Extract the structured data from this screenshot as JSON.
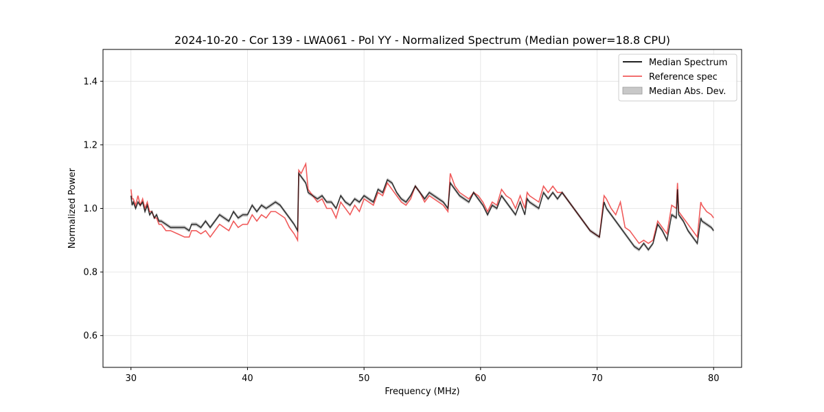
{
  "chart_data": {
    "type": "line",
    "title": "2024-10-20 - Cor 139 - LWA061 - Pol YY - Normalized Spectrum (Median power=18.8 CPU)",
    "xlabel": "Frequency (MHz)",
    "ylabel": "Normalized Power",
    "xlim": [
      27.6,
      82.4
    ],
    "ylim": [
      0.5,
      1.5
    ],
    "xticks": [
      30,
      40,
      50,
      60,
      70,
      80
    ],
    "yticks": [
      0.6,
      0.8,
      1.0,
      1.2,
      1.4
    ],
    "grid": true,
    "legend_position": "top-right",
    "series": [
      {
        "name": "Median Spectrum",
        "color": "#000000",
        "x": [
          30.0,
          30.1,
          30.2,
          30.4,
          30.6,
          30.8,
          31.0,
          31.2,
          31.4,
          31.6,
          31.8,
          32.0,
          32.2,
          32.4,
          32.6,
          33.0,
          33.4,
          34.0,
          34.6,
          35.0,
          35.2,
          35.6,
          36.0,
          36.4,
          36.8,
          37.2,
          37.6,
          38.0,
          38.4,
          38.8,
          39.2,
          39.6,
          40.0,
          40.4,
          40.8,
          41.2,
          41.6,
          42.0,
          42.4,
          42.8,
          43.2,
          43.6,
          44.0,
          44.3,
          44.4,
          44.6,
          45.0,
          45.2,
          45.6,
          46.0,
          46.4,
          46.8,
          47.2,
          47.6,
          48.0,
          48.4,
          48.8,
          49.2,
          49.6,
          50.0,
          50.4,
          50.8,
          51.2,
          51.6,
          52.0,
          52.4,
          52.8,
          53.2,
          53.6,
          54.0,
          54.4,
          54.8,
          55.2,
          55.6,
          56.0,
          56.4,
          56.8,
          57.2,
          57.4,
          57.8,
          58.2,
          58.6,
          59.0,
          59.4,
          59.8,
          60.2,
          60.6,
          61.0,
          61.4,
          61.8,
          62.2,
          62.6,
          63.0,
          63.4,
          63.8,
          64.0,
          64.2,
          64.6,
          65.0,
          65.4,
          65.8,
          66.2,
          66.6,
          67.0,
          67.4,
          67.8,
          68.2,
          68.6,
          69.0,
          69.4,
          69.8,
          70.2,
          70.6,
          70.8,
          71.2,
          71.6,
          72.0,
          72.4,
          72.8,
          73.2,
          73.6,
          74.0,
          74.4,
          74.8,
          75.2,
          75.6,
          76.0,
          76.4,
          76.8,
          76.9,
          77.0,
          77.4,
          77.8,
          78.2,
          78.6,
          78.9,
          79.0,
          79.4,
          79.8,
          80.0
        ],
        "values": [
          1.04,
          1.01,
          1.02,
          1.0,
          1.02,
          1.01,
          1.02,
          0.99,
          1.01,
          0.98,
          0.99,
          0.97,
          0.98,
          0.96,
          0.96,
          0.95,
          0.94,
          0.94,
          0.94,
          0.93,
          0.95,
          0.95,
          0.94,
          0.96,
          0.94,
          0.96,
          0.98,
          0.97,
          0.96,
          0.99,
          0.97,
          0.98,
          0.98,
          1.01,
          0.99,
          1.01,
          1.0,
          1.01,
          1.02,
          1.01,
          0.99,
          0.97,
          0.95,
          0.93,
          1.11,
          1.1,
          1.08,
          1.05,
          1.04,
          1.03,
          1.04,
          1.02,
          1.02,
          1.0,
          1.04,
          1.02,
          1.01,
          1.03,
          1.02,
          1.04,
          1.03,
          1.02,
          1.06,
          1.05,
          1.09,
          1.08,
          1.05,
          1.03,
          1.02,
          1.04,
          1.07,
          1.05,
          1.03,
          1.05,
          1.04,
          1.03,
          1.02,
          1.0,
          1.08,
          1.06,
          1.04,
          1.03,
          1.02,
          1.05,
          1.03,
          1.01,
          0.98,
          1.01,
          1.0,
          1.04,
          1.02,
          1.0,
          0.98,
          1.02,
          0.98,
          1.03,
          1.02,
          1.01,
          1.0,
          1.05,
          1.03,
          1.05,
          1.03,
          1.05,
          1.03,
          1.01,
          0.99,
          0.97,
          0.95,
          0.93,
          0.92,
          0.91,
          1.02,
          1.0,
          0.98,
          0.96,
          0.94,
          0.92,
          0.9,
          0.88,
          0.87,
          0.89,
          0.87,
          0.89,
          0.95,
          0.93,
          0.9,
          0.98,
          0.97,
          1.06,
          0.98,
          0.96,
          0.93,
          0.91,
          0.89,
          0.97,
          0.96,
          0.95,
          0.94,
          0.93
        ]
      },
      {
        "name": "Reference spec",
        "color": "#f05a5a",
        "x": [
          30.0,
          30.1,
          30.2,
          30.4,
          30.6,
          30.8,
          31.0,
          31.2,
          31.4,
          31.6,
          31.8,
          32.0,
          32.2,
          32.4,
          32.6,
          33.0,
          33.4,
          34.0,
          34.6,
          35.0,
          35.2,
          35.6,
          36.0,
          36.4,
          36.8,
          37.2,
          37.6,
          38.0,
          38.4,
          38.8,
          39.2,
          39.6,
          40.0,
          40.4,
          40.8,
          41.2,
          41.6,
          42.0,
          42.4,
          42.8,
          43.2,
          43.6,
          44.0,
          44.3,
          44.4,
          44.6,
          45.0,
          45.2,
          45.6,
          46.0,
          46.4,
          46.8,
          47.2,
          47.6,
          48.0,
          48.4,
          48.8,
          49.2,
          49.6,
          50.0,
          50.4,
          50.8,
          51.2,
          51.6,
          52.0,
          52.4,
          52.8,
          53.2,
          53.6,
          54.0,
          54.4,
          54.8,
          55.2,
          55.6,
          56.0,
          56.4,
          56.8,
          57.2,
          57.4,
          57.8,
          58.2,
          58.6,
          59.0,
          59.4,
          59.8,
          60.2,
          60.6,
          61.0,
          61.4,
          61.8,
          62.2,
          62.6,
          63.0,
          63.4,
          63.8,
          64.0,
          64.2,
          64.6,
          65.0,
          65.4,
          65.8,
          66.2,
          66.6,
          67.0,
          67.4,
          67.8,
          68.2,
          68.6,
          69.0,
          69.4,
          69.8,
          70.2,
          70.6,
          70.8,
          71.2,
          71.6,
          72.0,
          72.4,
          72.8,
          73.2,
          73.6,
          74.0,
          74.4,
          74.8,
          75.2,
          75.6,
          76.0,
          76.4,
          76.8,
          76.9,
          77.0,
          77.4,
          77.8,
          78.2,
          78.6,
          78.9,
          79.0,
          79.4,
          79.8,
          80.0
        ],
        "values": [
          1.06,
          1.03,
          1.03,
          1.01,
          1.04,
          1.01,
          1.03,
          1.0,
          1.02,
          0.99,
          0.99,
          0.97,
          0.97,
          0.95,
          0.95,
          0.93,
          0.93,
          0.92,
          0.91,
          0.91,
          0.93,
          0.93,
          0.92,
          0.93,
          0.91,
          0.93,
          0.95,
          0.94,
          0.93,
          0.96,
          0.94,
          0.95,
          0.95,
          0.98,
          0.96,
          0.98,
          0.97,
          0.99,
          0.99,
          0.98,
          0.97,
          0.94,
          0.92,
          0.9,
          1.12,
          1.11,
          1.14,
          1.06,
          1.04,
          1.02,
          1.03,
          1.0,
          1.0,
          0.97,
          1.02,
          1.0,
          0.98,
          1.01,
          0.99,
          1.03,
          1.02,
          1.01,
          1.05,
          1.04,
          1.08,
          1.06,
          1.04,
          1.02,
          1.01,
          1.03,
          1.07,
          1.05,
          1.02,
          1.04,
          1.03,
          1.02,
          1.01,
          0.99,
          1.11,
          1.07,
          1.05,
          1.04,
          1.03,
          1.05,
          1.04,
          1.02,
          0.99,
          1.02,
          1.01,
          1.06,
          1.04,
          1.03,
          1.0,
          1.04,
          1.0,
          1.05,
          1.04,
          1.03,
          1.02,
          1.07,
          1.05,
          1.07,
          1.05,
          1.05,
          1.03,
          1.01,
          0.99,
          0.97,
          0.95,
          0.93,
          0.92,
          0.91,
          1.04,
          1.03,
          1.0,
          0.98,
          1.02,
          0.94,
          0.93,
          0.91,
          0.89,
          0.9,
          0.89,
          0.9,
          0.96,
          0.94,
          0.92,
          1.01,
          1.0,
          1.08,
          0.99,
          0.97,
          0.95,
          0.93,
          0.91,
          1.02,
          1.01,
          0.99,
          0.98,
          0.97
        ]
      },
      {
        "name": "Median Abs. Dev.",
        "color": "#b4b4b4",
        "mad": 0.006
      }
    ]
  }
}
